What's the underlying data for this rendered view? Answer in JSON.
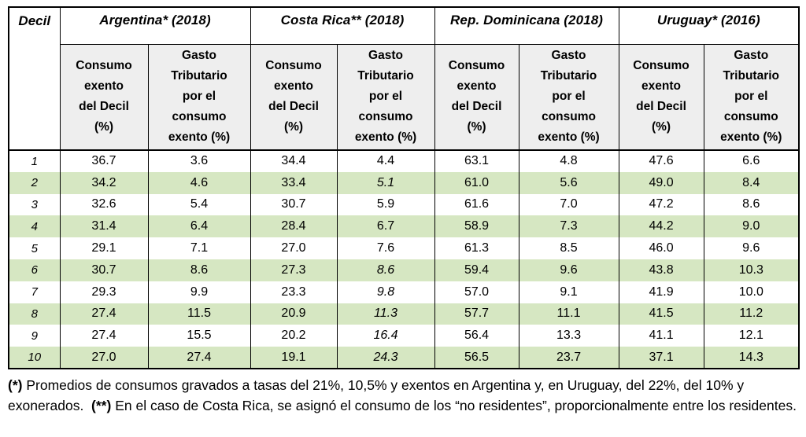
{
  "table": {
    "corner_header": "Decil",
    "groups": [
      {
        "label": "Argentina* (2018)"
      },
      {
        "label": "Costa Rica** (2018)"
      },
      {
        "label": "Rep. Dominicana (2018)"
      },
      {
        "label": "Uruguay* (2016)"
      }
    ],
    "sub_headers": {
      "consumo_lines": "Consumo\nexento\ndel Decil\n(%)",
      "gasto_lines": "Gasto\nTributario\npor el\nconsumo\nexento (%)"
    },
    "rows": [
      {
        "decil": "1",
        "values": [
          "36.7",
          "3.6",
          "34.4",
          "4.4",
          "63.1",
          "4.8",
          "47.6",
          "6.6"
        ]
      },
      {
        "decil": "2",
        "values": [
          "34.2",
          "4.6",
          "33.4",
          "5.1",
          "61.0",
          "5.6",
          "49.0",
          "8.4"
        ]
      },
      {
        "decil": "3",
        "values": [
          "32.6",
          "5.4",
          "30.7",
          "5.9",
          "61.6",
          "7.0",
          "47.2",
          "8.6"
        ]
      },
      {
        "decil": "4",
        "values": [
          "31.4",
          "6.4",
          "28.4",
          "6.7",
          "58.9",
          "7.3",
          "44.2",
          "9.0"
        ]
      },
      {
        "decil": "5",
        "values": [
          "29.1",
          "7.1",
          "27.0",
          "7.6",
          "61.3",
          "8.5",
          "46.0",
          "9.6"
        ]
      },
      {
        "decil": "6",
        "values": [
          "30.7",
          "8.6",
          "27.3",
          "8.6",
          "59.4",
          "9.6",
          "43.8",
          "10.3"
        ]
      },
      {
        "decil": "7",
        "values": [
          "29.3",
          "9.9",
          "23.3",
          "9.8",
          "57.0",
          "9.1",
          "41.9",
          "10.0"
        ]
      },
      {
        "decil": "8",
        "values": [
          "27.4",
          "11.5",
          "20.9",
          "11.3",
          "57.7",
          "11.1",
          "41.5",
          "11.2"
        ]
      },
      {
        "decil": "9",
        "values": [
          "27.4",
          "15.5",
          "20.2",
          "16.4",
          "56.4",
          "13.3",
          "41.1",
          "12.1"
        ]
      },
      {
        "decil": "10",
        "values": [
          "27.0",
          "27.4",
          "19.1",
          "24.3",
          "56.5",
          "23.7",
          "37.1",
          "14.3"
        ]
      }
    ],
    "italic_value_cells": [
      [
        2,
        3
      ],
      [
        6,
        3
      ],
      [
        7,
        3
      ],
      [
        8,
        3
      ],
      [
        9,
        3
      ],
      [
        10,
        3
      ]
    ]
  },
  "footnote": {
    "parts": [
      {
        "text": "(*)",
        "bold": true
      },
      {
        "text": " Promedios de consumos gravados a tasas del 21%, 10,5% y exentos en Argentina y, en Uruguay, del 22%, del 10% y exonerados.  ",
        "bold": false
      },
      {
        "text": "(**)",
        "bold": true
      },
      {
        "text": " En el caso de Costa Rica, se asignó el consumo de los “no residentes”, proporcionalmente entre los residentes.",
        "bold": false
      }
    ]
  },
  "colors": {
    "band_green": "#d6e7c2",
    "header_gray": "#eeeeee",
    "border": "#000000"
  }
}
